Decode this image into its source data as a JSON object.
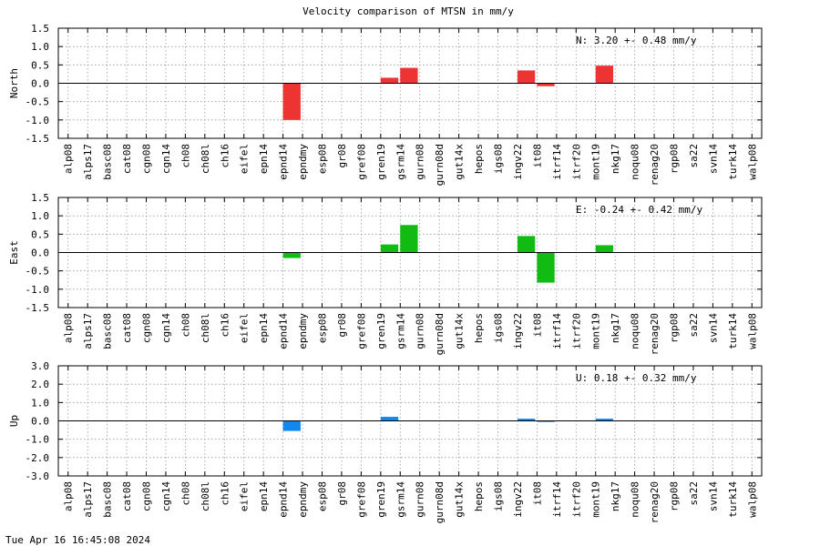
{
  "title": "Velocity comparison of MTSN in mm/y",
  "timestamp": "Tue Apr 16 16:45:08 2024",
  "colors": {
    "north": "#ee3333",
    "east": "#11bb11",
    "up": "#1188ee",
    "grid": "#999999",
    "axis": "#000000"
  },
  "chart_data": [
    {
      "type": "bar",
      "ylabel": "North",
      "ylim": [
        -1.5,
        1.5
      ],
      "yticks": [
        "1.5",
        "1.0",
        "0.5",
        "0.0",
        "-0.5",
        "-1.0",
        "-1.5"
      ],
      "grid": true,
      "annotation": "N:   3.20 +-  0.48 mm/y",
      "categories": [
        "alp08",
        "alps17",
        "basc08",
        "cat08",
        "cgn08",
        "cgn14",
        "ch08",
        "ch08l",
        "ch16",
        "eifel",
        "epn14",
        "epnd14",
        "epndmy",
        "esp08",
        "gr08",
        "gref08",
        "gren19",
        "gsrm14",
        "gurn08",
        "gurn08d",
        "gut14x",
        "hepos",
        "igs08",
        "ingv22",
        "it08",
        "itrf14",
        "itrf20",
        "mont19",
        "nkg17",
        "noqu08",
        "renag20",
        "rgp08",
        "sa22",
        "svn14",
        "turk14",
        "walp08"
      ],
      "values": [
        0,
        0,
        0,
        0,
        0,
        0,
        0,
        0,
        0,
        0,
        0,
        -1.0,
        0,
        0,
        0,
        0,
        0.15,
        0.42,
        0,
        0,
        0,
        0,
        0,
        0.35,
        -0.08,
        0,
        0,
        0.48,
        0,
        0,
        0,
        0,
        0,
        0,
        0,
        0
      ]
    },
    {
      "type": "bar",
      "ylabel": "East",
      "ylim": [
        -1.5,
        1.5
      ],
      "yticks": [
        "1.5",
        "1.0",
        "0.5",
        "0.0",
        "-0.5",
        "-1.0",
        "-1.5"
      ],
      "grid": true,
      "annotation": "E:  -0.24 +-  0.42 mm/y",
      "categories": [
        "alp08",
        "alps17",
        "basc08",
        "cat08",
        "cgn08",
        "cgn14",
        "ch08",
        "ch08l",
        "ch16",
        "eifel",
        "epn14",
        "epnd14",
        "epndmy",
        "esp08",
        "gr08",
        "gref08",
        "gren19",
        "gsrm14",
        "gurn08",
        "gurn08d",
        "gut14x",
        "hepos",
        "igs08",
        "ingv22",
        "it08",
        "itrf14",
        "itrf20",
        "mont19",
        "nkg17",
        "noqu08",
        "renag20",
        "rgp08",
        "sa22",
        "svn14",
        "turk14",
        "walp08"
      ],
      "values": [
        0,
        0,
        0,
        0,
        0,
        0,
        0,
        0,
        0,
        0,
        0,
        -0.15,
        0,
        0,
        0,
        0,
        0.22,
        0.75,
        0,
        0,
        0,
        0,
        0,
        0.45,
        -0.82,
        0,
        0,
        0.2,
        0,
        0,
        0,
        0,
        0,
        0,
        0,
        0
      ]
    },
    {
      "type": "bar",
      "ylabel": "Up",
      "ylim": [
        -3.0,
        3.0
      ],
      "yticks": [
        "3.0",
        "2.0",
        "1.0",
        "0.0",
        "-1.0",
        "-2.0",
        "-3.0"
      ],
      "grid": true,
      "annotation": "U:   0.18 +-  0.32 mm/y",
      "categories": [
        "alp08",
        "alps17",
        "basc08",
        "cat08",
        "cgn08",
        "cgn14",
        "ch08",
        "ch08l",
        "ch16",
        "eifel",
        "epn14",
        "epnd14",
        "epndmy",
        "esp08",
        "gr08",
        "gref08",
        "gren19",
        "gsrm14",
        "gurn08",
        "gurn08d",
        "gut14x",
        "hepos",
        "igs08",
        "ingv22",
        "it08",
        "itrf14",
        "itrf20",
        "mont19",
        "nkg17",
        "noqu08",
        "renag20",
        "rgp08",
        "sa22",
        "svn14",
        "turk14",
        "walp08"
      ],
      "values": [
        0,
        0,
        0,
        0,
        0,
        0,
        0,
        0,
        0,
        0,
        0,
        -0.55,
        0,
        0,
        0,
        0,
        0.22,
        0,
        0,
        0,
        0,
        0,
        0,
        0.12,
        -0.06,
        0,
        0,
        0.12,
        0,
        0,
        0,
        0,
        0,
        0,
        0,
        0
      ]
    }
  ]
}
